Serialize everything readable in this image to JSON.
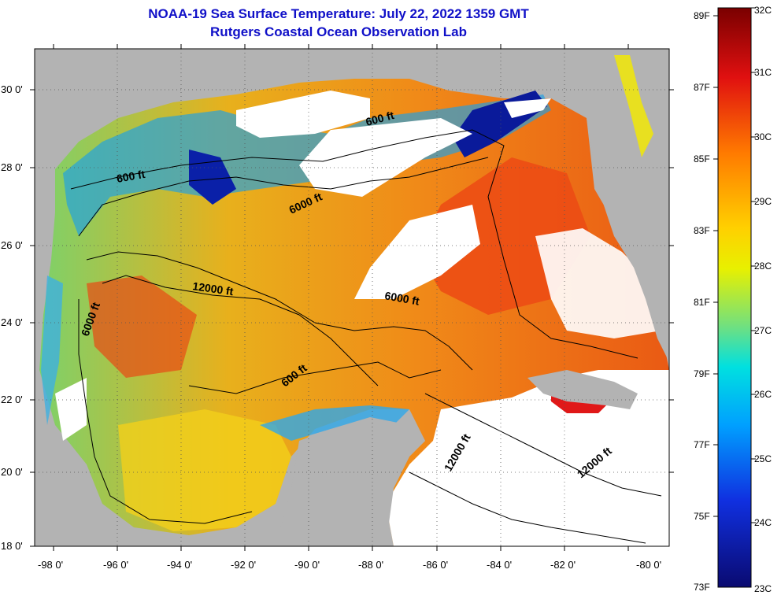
{
  "title": {
    "line1": "NOAA-19 Sea Surface Temperature:  July 22, 2022 1359 GMT",
    "line2": "Rutgers Coastal Ocean Observation Lab"
  },
  "axes": {
    "lat_labels": [
      "30 0'",
      "28 0'",
      "26 0'",
      "24 0'",
      "22 0'",
      "20 0'",
      "18 0'"
    ],
    "lon_labels": [
      "-98 0'",
      "-96 0'",
      "-94 0'",
      "-92 0'",
      "-90 0'",
      "-88 0'",
      "-86 0'",
      "-84 0'",
      "-82 0'",
      "-80 0'"
    ]
  },
  "contours": {
    "c600_a": "600 ft",
    "c600_b": "600 ft",
    "c600_c": "600 ft",
    "c6000_a": "6000 ft",
    "c6000_b": "6000 ft",
    "c6000_c": "6000 ft",
    "c12000_a": "12000 ft",
    "c12000_b": "12000 ft",
    "c12000_c": "12000 ft"
  },
  "colorbar": {
    "fahrenheit": [
      "89F",
      "87F",
      "85F",
      "83F",
      "81F",
      "79F",
      "77F",
      "75F",
      "73F"
    ],
    "celsius": [
      "32C",
      "31C",
      "30C",
      "29C",
      "28C",
      "27C",
      "26C",
      "25C",
      "24C",
      "23C"
    ]
  },
  "colors": {
    "title": "#1010c8",
    "land": "#b3b3b3",
    "cloud": "#ffffff"
  }
}
